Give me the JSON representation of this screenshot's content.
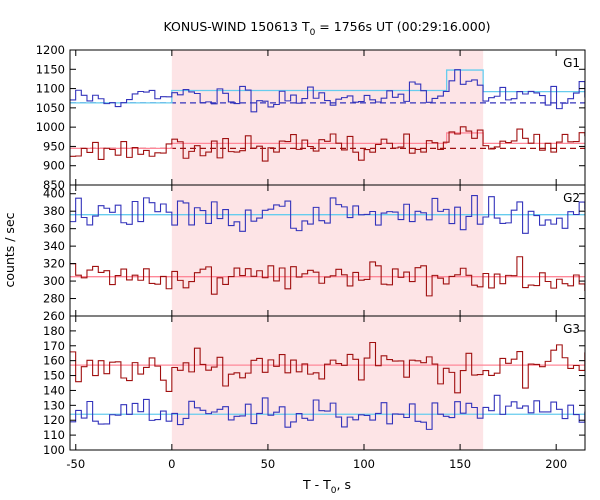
{
  "chart_data": {
    "type": "line",
    "title": "KONUS-WIND 150613 T0 = 1756s UT (00:29:16.000)",
    "title_parts": {
      "pre": "KONUS-WIND 150613 T",
      "sub": "0",
      "post": " = 1756s UT (00:29:16.000)"
    },
    "xlabel_parts": {
      "pre": "T - T",
      "sub": "0",
      "post": ", s"
    },
    "ylabel": "counts / sec",
    "xlim": [
      -53,
      215
    ],
    "x_ticks": [
      -50,
      0,
      50,
      100,
      150,
      200
    ],
    "highlight_interval": [
      0,
      162
    ],
    "colors": {
      "blue_series": "#3333bb",
      "red_series": "#a01010",
      "blue_background": "#66ccee",
      "red_background": "#ff8899",
      "highlight": "#fde4e6"
    },
    "panels": [
      {
        "name": "G1",
        "ylim": [
          850,
          1200
        ],
        "y_ticks": [
          850,
          900,
          950,
          1000,
          1050,
          1100,
          1150,
          1200
        ],
        "series": [
          {
            "color_key": "blue_series",
            "mean": 1080,
            "noise": 16,
            "seed": 11,
            "steps": [
              [
                -53,
                1075
              ],
              [
                0,
                1080
              ],
              [
                143,
                1135
              ],
              [
                162,
                1080
              ]
            ]
          },
          {
            "color_key": "red_series",
            "mean": 950,
            "noise": 14,
            "seed": 23,
            "steps": [
              [
                -53,
                940
              ],
              [
                0,
                950
              ],
              [
                143,
                1000
              ],
              [
                162,
                960
              ]
            ]
          }
        ],
        "background_lines": [
          {
            "color_key": "blue_background",
            "segments": [
              [
                -53,
                1063
              ],
              [
                0,
                1095
              ],
              [
                143,
                1148
              ],
              [
                162,
                1092
              ]
            ]
          },
          {
            "color_key": "red_background",
            "segments": [
              [
                -53,
                945
              ],
              [
                0,
                958
              ],
              [
                143,
                985
              ],
              [
                162,
                958
              ]
            ]
          }
        ],
        "dashed_lines": [
          {
            "color_key": "blue_series",
            "y": 1063
          },
          {
            "color_key": "red_series",
            "y": 945
          }
        ]
      },
      {
        "name": "G2",
        "ylim": [
          260,
          410
        ],
        "y_ticks": [
          260,
          280,
          300,
          320,
          340,
          360,
          380,
          400
        ],
        "series": [
          {
            "color_key": "blue_series",
            "mean": 376,
            "noise": 9,
            "seed": 37,
            "steps": [
              [
                -53,
                378
              ],
              [
                0,
                376
              ]
            ]
          },
          {
            "color_key": "red_series",
            "mean": 305,
            "noise": 9,
            "seed": 41,
            "steps": [
              [
                -53,
                305
              ],
              [
                0,
                306
              ]
            ]
          }
        ],
        "background_lines": [
          {
            "color_key": "blue_background",
            "segments": [
              [
                -53,
                376
              ]
            ]
          },
          {
            "color_key": "red_background",
            "segments": [
              [
                -53,
                305
              ]
            ]
          }
        ],
        "dashed_lines": []
      },
      {
        "name": "G3",
        "ylim": [
          100,
          190
        ],
        "y_ticks": [
          100,
          110,
          120,
          130,
          140,
          150,
          160,
          170,
          180
        ],
        "series": [
          {
            "color_key": "red_series",
            "mean": 157,
            "noise": 7,
            "seed": 53,
            "steps": [
              [
                -53,
                156
              ],
              [
                0,
                157
              ]
            ]
          },
          {
            "color_key": "blue_series",
            "mean": 124,
            "noise": 5,
            "seed": 67,
            "steps": [
              [
                -53,
                124
              ],
              [
                0,
                124
              ]
            ]
          }
        ],
        "background_lines": [
          {
            "color_key": "red_background",
            "segments": [
              [
                -53,
                157
              ]
            ]
          },
          {
            "color_key": "blue_background",
            "segments": [
              [
                -53,
                124
              ]
            ]
          }
        ],
        "dashed_lines": []
      }
    ],
    "bin_width": 2.944
  }
}
